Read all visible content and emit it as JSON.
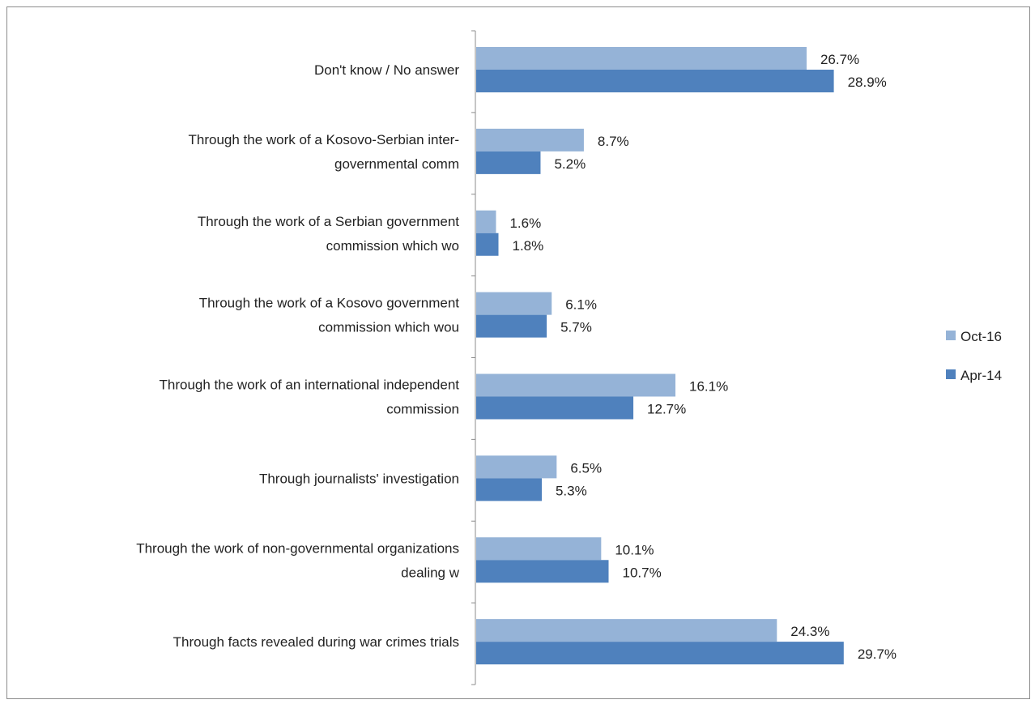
{
  "chart_data": {
    "type": "bar",
    "orientation": "horizontal",
    "categories": [
      [
        "Don't know / No answer"
      ],
      [
        "Through the work of a Kosovo-Serbian inter-",
        "governmental comm"
      ],
      [
        "Through the work of a Serbian government",
        "commission which wo"
      ],
      [
        "Through the work of a Kosovo government",
        "commission which wou"
      ],
      [
        "Through the work of an international independent",
        "commission"
      ],
      [
        "Through journalists' investigation"
      ],
      [
        "Through the work of non-governmental organizations",
        "dealing w"
      ],
      [
        "Through facts revealed during war crimes trials"
      ]
    ],
    "series": [
      {
        "name": "Oct-16",
        "color": "#95b3d7",
        "values": [
          26.7,
          8.7,
          1.6,
          6.1,
          16.1,
          6.5,
          10.1,
          24.3
        ],
        "labels": [
          "26.7%",
          "8.7%",
          "1.6%",
          "6.1%",
          "16.1%",
          "6.5%",
          "10.1%",
          "24.3%"
        ]
      },
      {
        "name": "Apr-14",
        "color": "#4f81bd",
        "values": [
          28.9,
          5.2,
          1.8,
          5.7,
          12.7,
          5.3,
          10.7,
          29.7
        ],
        "labels": [
          "28.9%",
          "5.2%",
          "1.8%",
          "5.7%",
          "12.7%",
          "5.3%",
          "10.7%",
          "29.7%"
        ]
      }
    ],
    "xlim": [
      0,
      35
    ],
    "grid": false,
    "legend_position": "right"
  },
  "legend": {
    "items": [
      {
        "label": "Oct-16",
        "color": "#95b3d7"
      },
      {
        "label": "Apr-14",
        "color": "#4f81bd"
      }
    ]
  },
  "colors": {
    "axis": "#8c8c8c",
    "text": "#222222"
  }
}
